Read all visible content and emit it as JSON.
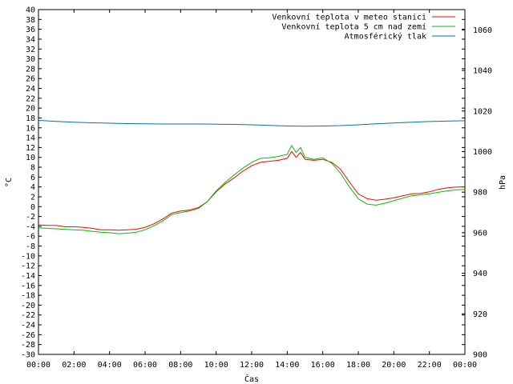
{
  "chart_data": {
    "type": "line",
    "xlabel": "Čas",
    "ylabel_left": "°C",
    "ylabel_right": "hPa",
    "x_ticks": [
      "00:00",
      "02:00",
      "04:00",
      "06:00",
      "08:00",
      "10:00",
      "12:00",
      "14:00",
      "16:00",
      "18:00",
      "20:00",
      "22:00",
      "00:00"
    ],
    "x_range_hours": [
      0,
      24
    ],
    "y_left_range": [
      -30,
      40
    ],
    "y_left_step": 2,
    "y_right_range": [
      900,
      1070
    ],
    "y_right_ticks": [
      900,
      920,
      940,
      960,
      980,
      1000,
      1020,
      1040,
      1060
    ],
    "legend_position": "top-right",
    "grid": false,
    "series": [
      {
        "name": "Venkovní teplota v meteo stanici",
        "color": "#ff0000",
        "axis": "left",
        "x": [
          0,
          0.5,
          1,
          1.5,
          2,
          2.5,
          3,
          3.5,
          4,
          4.5,
          5,
          5.5,
          6,
          6.5,
          7,
          7.5,
          8,
          8.5,
          9,
          9.5,
          10,
          10.5,
          11,
          11.5,
          12,
          12.5,
          13,
          13.5,
          14,
          14.25,
          14.5,
          14.75,
          15,
          15.5,
          16,
          16.5,
          17,
          17.5,
          18,
          18.5,
          19,
          19.5,
          20,
          20.5,
          21,
          21.5,
          22,
          22.5,
          23,
          23.5,
          24
        ],
        "y": [
          -3.7,
          -3.8,
          -3.8,
          -4.1,
          -4.1,
          -4.2,
          -4.4,
          -4.7,
          -4.7,
          -4.8,
          -4.7,
          -4.6,
          -4.2,
          -3.5,
          -2.5,
          -1.3,
          -0.9,
          -0.7,
          -0.2,
          1.0,
          3.0,
          4.6,
          5.8,
          7.2,
          8.3,
          9.0,
          9.2,
          9.4,
          9.8,
          11.2,
          10.0,
          11.0,
          9.6,
          9.4,
          9.6,
          9.0,
          7.6,
          5.0,
          2.6,
          1.6,
          1.3,
          1.5,
          1.8,
          2.2,
          2.6,
          2.7,
          3.0,
          3.5,
          3.8,
          4.0,
          4.0
        ]
      },
      {
        "name": "Venkovní teplota 5 cm nad zemí",
        "color": "#00c000",
        "axis": "left",
        "x": [
          0,
          0.5,
          1,
          1.5,
          2,
          2.5,
          3,
          3.5,
          4,
          4.5,
          5,
          5.5,
          6,
          6.5,
          7,
          7.5,
          8,
          8.5,
          9,
          9.5,
          10,
          10.5,
          11,
          11.5,
          12,
          12.5,
          13,
          13.5,
          14,
          14.25,
          14.5,
          14.75,
          15,
          15.5,
          16,
          16.5,
          17,
          17.5,
          18,
          18.5,
          19,
          19.5,
          20,
          20.5,
          21,
          21.5,
          22,
          22.5,
          23,
          23.5,
          24
        ],
        "y": [
          -4.3,
          -4.4,
          -4.5,
          -4.6,
          -4.7,
          -4.8,
          -5.0,
          -5.2,
          -5.3,
          -5.5,
          -5.4,
          -5.2,
          -4.7,
          -3.9,
          -2.9,
          -1.6,
          -1.2,
          -0.9,
          -0.4,
          1.0,
          3.2,
          4.9,
          6.4,
          7.8,
          9.0,
          9.8,
          9.9,
          10.2,
          10.6,
          12.4,
          11.0,
          12.0,
          10.0,
          9.6,
          9.9,
          8.8,
          6.8,
          4.0,
          1.6,
          0.5,
          0.3,
          0.7,
          1.2,
          1.7,
          2.2,
          2.4,
          2.6,
          2.9,
          3.2,
          3.4,
          3.5
        ]
      },
      {
        "name": "Atmosférický tlak",
        "color": "#0070c0",
        "axis": "right",
        "x": [
          0,
          1,
          2,
          3,
          4,
          5,
          6,
          7,
          8,
          9,
          10,
          11,
          12,
          13,
          14,
          15,
          16,
          17,
          18,
          19,
          20,
          21,
          22,
          23,
          24
        ],
        "y": [
          1015.4,
          1014.9,
          1014.5,
          1014.2,
          1014.0,
          1013.8,
          1013.7,
          1013.6,
          1013.6,
          1013.6,
          1013.5,
          1013.4,
          1013.2,
          1012.9,
          1012.6,
          1012.5,
          1012.6,
          1012.8,
          1013.2,
          1013.7,
          1014.1,
          1014.5,
          1014.8,
          1015.0,
          1015.2
        ]
      }
    ]
  }
}
